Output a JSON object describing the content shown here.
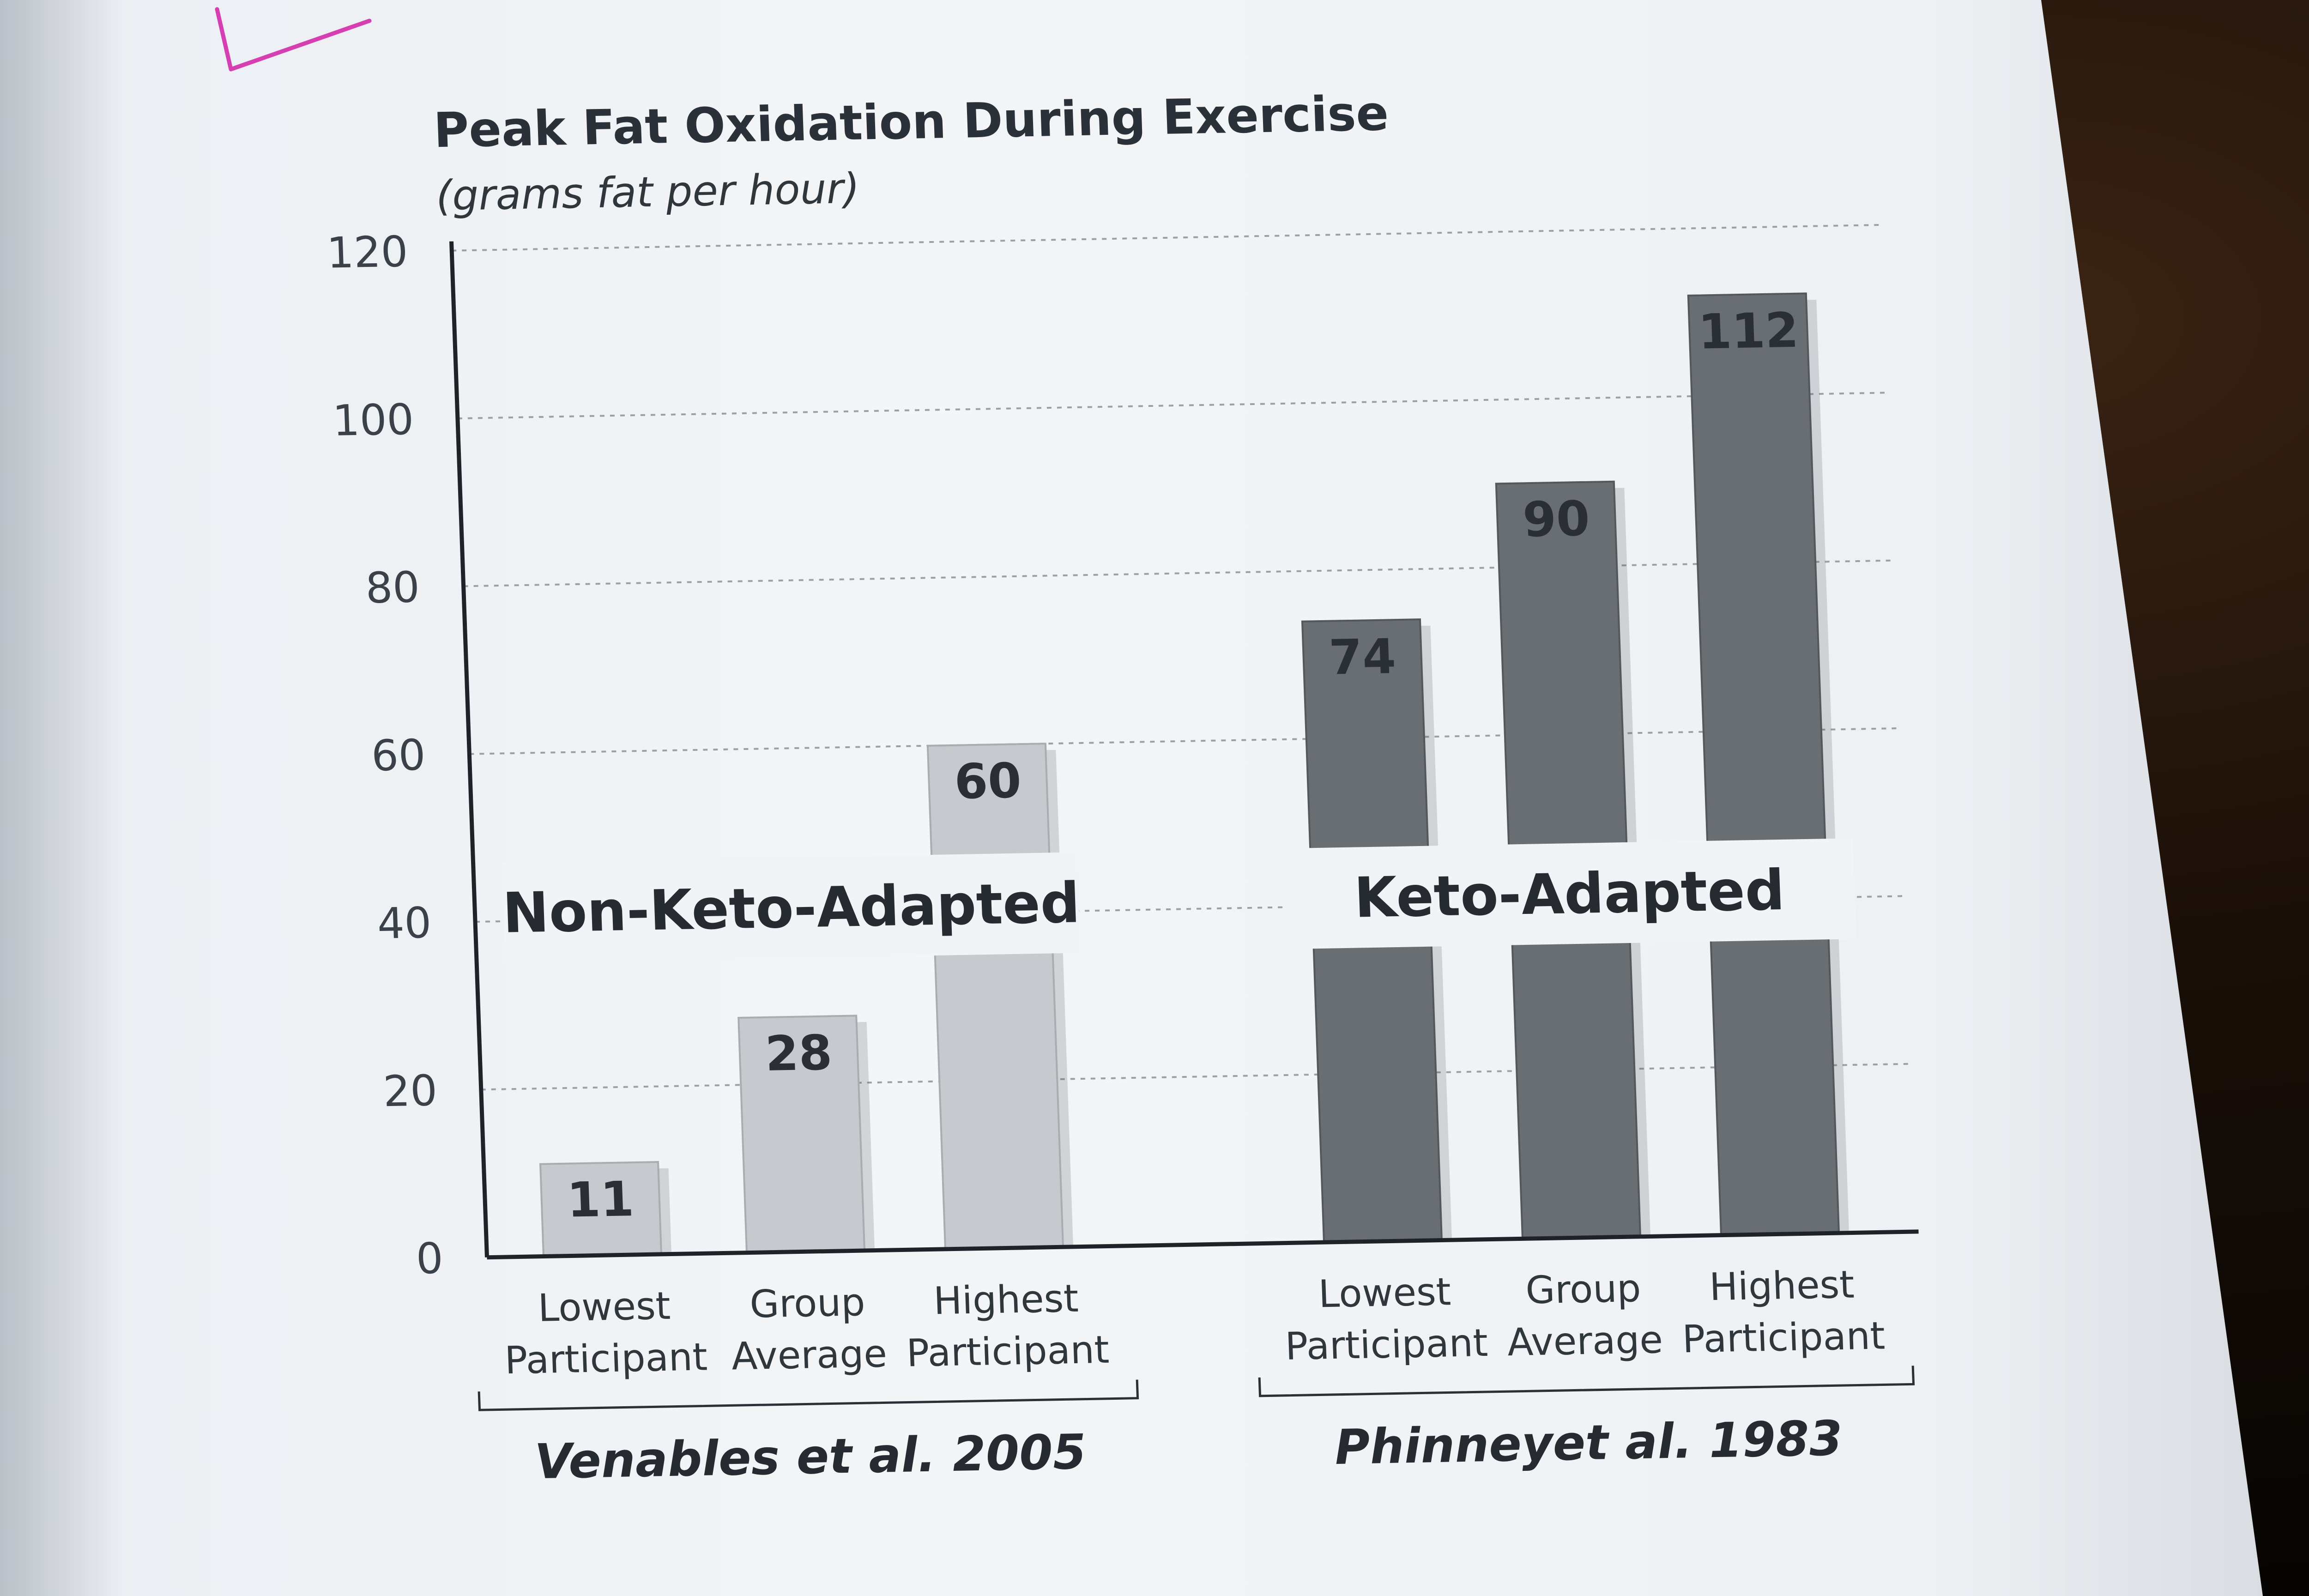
{
  "chart_data": {
    "type": "bar",
    "title": "Peak Fat Oxidation During Exercise",
    "subtitle": "(grams fat per hour)",
    "ylim": [
      0,
      120
    ],
    "yticks": [
      0,
      20,
      40,
      60,
      80,
      100,
      120
    ],
    "grid": true,
    "groups": [
      {
        "label": "Non-Keto-Adapted",
        "source": "Venables et al. 2005",
        "color": "#c9ccd0",
        "bars": [
          {
            "category": [
              "Lowest",
              "Participant"
            ],
            "value": 11
          },
          {
            "category": [
              "Group",
              "Average"
            ],
            "value": 28
          },
          {
            "category": [
              "Highest",
              "Participant"
            ],
            "value": 60
          }
        ]
      },
      {
        "label": "Keto-Adapted",
        "source": "Phinneyet al. 1983",
        "color": "#6e7378",
        "bars": [
          {
            "category": [
              "Lowest",
              "Participant"
            ],
            "value": 74
          },
          {
            "category": [
              "Group",
              "Average"
            ],
            "value": 90
          },
          {
            "category": [
              "Highest",
              "Participant"
            ],
            "value": 112
          }
        ]
      }
    ]
  }
}
